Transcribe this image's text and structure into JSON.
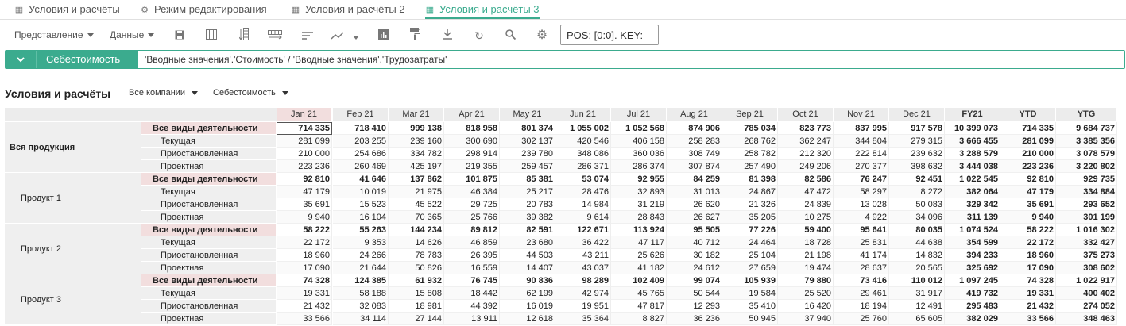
{
  "tabs": [
    {
      "label": "Условия и расчёты",
      "icon": "grid-icon"
    },
    {
      "label": "Режим редактирования",
      "icon": "gear-icon"
    },
    {
      "label": "Условия и расчёты 2",
      "icon": "grid-icon"
    },
    {
      "label": "Условия и расчёты 3",
      "icon": "grid-icon",
      "active": true
    }
  ],
  "toolbar": {
    "view_label": "Представление",
    "data_label": "Данные",
    "icons": [
      "save-icon",
      "table-icon",
      "column-icon",
      "row-icon",
      "sort-icon",
      "chart-icon",
      "chart-dropdown-icon",
      "bar-chart-icon",
      "format-paint-icon",
      "download-icon",
      "refresh-icon",
      "search-icon",
      "settings-icon"
    ],
    "pos_text": "POS: [0:0]. KEY:"
  },
  "formula": {
    "name": "Себестоимость",
    "expression": "'Вводные значения'.'Стоимость' / 'Вводные значения'.'Трудозатраты'"
  },
  "grid_header": {
    "title": "Условия и расчёты",
    "filter1": "Все компании",
    "filter2": "Себестоимость"
  },
  "columns": [
    "Jan 21",
    "Feb 21",
    "Mar 21",
    "Apr 21",
    "May 21",
    "Jun 21",
    "Jul 21",
    "Aug 21",
    "Sep 21",
    "Oct 21",
    "Nov 21",
    "Dec 21",
    "FY21",
    "YTD",
    "YTG"
  ],
  "groups": [
    {
      "name": "Вся продукция",
      "rows": [
        {
          "label": "Все виды деятельности",
          "bold": true,
          "values": [
            "714 335",
            "718 410",
            "999 138",
            "818 958",
            "801 374",
            "1 055 002",
            "1 052 568",
            "874 906",
            "785 034",
            "823 773",
            "837 995",
            "917 578",
            "10 399 073",
            "714 335",
            "9 684 737"
          ]
        },
        {
          "label": "Текущая",
          "values": [
            "281 099",
            "203 255",
            "239 160",
            "300 690",
            "302 137",
            "420 546",
            "406 158",
            "258 283",
            "268 762",
            "362 247",
            "344 804",
            "279 315",
            "3 666 455",
            "281 099",
            "3 385 356"
          ]
        },
        {
          "label": "Приостановленная",
          "values": [
            "210 000",
            "254 686",
            "334 782",
            "298 914",
            "239 780",
            "348 086",
            "360 036",
            "308 749",
            "258 782",
            "212 320",
            "222 814",
            "239 632",
            "3 288 579",
            "210 000",
            "3 078 579"
          ]
        },
        {
          "label": "Проектная",
          "values": [
            "223 236",
            "260 469",
            "425 197",
            "219 355",
            "259 457",
            "286 371",
            "286 374",
            "307 874",
            "257 490",
            "249 206",
            "270 377",
            "398 632",
            "3 444 038",
            "223 236",
            "3 220 802"
          ]
        }
      ]
    },
    {
      "name": "Продукт 1",
      "rows": [
        {
          "label": "Все виды деятельности",
          "bold": true,
          "values": [
            "92 810",
            "41 646",
            "137 862",
            "101 875",
            "85 381",
            "53 074",
            "92 955",
            "84 259",
            "81 398",
            "82 586",
            "76 247",
            "92 451",
            "1 022 545",
            "92 810",
            "929 735"
          ]
        },
        {
          "label": "Текущая",
          "values": [
            "47 179",
            "10 019",
            "21 975",
            "46 384",
            "25 217",
            "28 476",
            "32 893",
            "31 013",
            "24 867",
            "47 472",
            "58 297",
            "8 272",
            "382 064",
            "47 179",
            "334 884"
          ]
        },
        {
          "label": "Приостановленная",
          "values": [
            "35 691",
            "15 523",
            "45 522",
            "29 725",
            "20 783",
            "14 984",
            "31 219",
            "26 620",
            "21 326",
            "24 839",
            "13 028",
            "50 083",
            "329 342",
            "35 691",
            "293 652"
          ]
        },
        {
          "label": "Проектная",
          "values": [
            "9 940",
            "16 104",
            "70 365",
            "25 766",
            "39 382",
            "9 614",
            "28 843",
            "26 627",
            "35 205",
            "10 275",
            "4 922",
            "34 096",
            "311 139",
            "9 940",
            "301 199"
          ]
        }
      ]
    },
    {
      "name": "Продукт 2",
      "rows": [
        {
          "label": "Все виды деятельности",
          "bold": true,
          "values": [
            "58 222",
            "55 263",
            "144 234",
            "89 812",
            "82 591",
            "122 671",
            "113 924",
            "95 505",
            "77 226",
            "59 400",
            "95 641",
            "80 035",
            "1 074 524",
            "58 222",
            "1 016 302"
          ]
        },
        {
          "label": "Текущая",
          "values": [
            "22 172",
            "9 353",
            "14 626",
            "46 859",
            "23 680",
            "36 422",
            "47 117",
            "40 712",
            "24 464",
            "18 728",
            "25 831",
            "44 638",
            "354 599",
            "22 172",
            "332 427"
          ]
        },
        {
          "label": "Приостановленная",
          "values": [
            "18 960",
            "24 266",
            "78 783",
            "26 395",
            "44 503",
            "43 211",
            "25 626",
            "30 182",
            "25 104",
            "21 198",
            "41 174",
            "14 832",
            "394 233",
            "18 960",
            "375 273"
          ]
        },
        {
          "label": "Проектная",
          "values": [
            "17 090",
            "21 644",
            "50 826",
            "16 559",
            "14 407",
            "43 037",
            "41 182",
            "24 612",
            "27 659",
            "19 474",
            "28 637",
            "20 565",
            "325 692",
            "17 090",
            "308 602"
          ]
        }
      ]
    },
    {
      "name": "Продукт 3",
      "rows": [
        {
          "label": "Все виды деятельности",
          "bold": true,
          "values": [
            "74 328",
            "124 385",
            "61 932",
            "76 745",
            "90 836",
            "98 289",
            "102 409",
            "99 074",
            "105 939",
            "79 880",
            "73 416",
            "110 012",
            "1 097 245",
            "74 328",
            "1 022 917"
          ]
        },
        {
          "label": "Текущая",
          "values": [
            "19 331",
            "58 188",
            "15 808",
            "18 442",
            "62 199",
            "42 974",
            "45 765",
            "50 544",
            "19 584",
            "25 520",
            "29 461",
            "31 917",
            "419 732",
            "19 331",
            "400 402"
          ]
        },
        {
          "label": "Приостановленная",
          "values": [
            "21 432",
            "32 083",
            "18 981",
            "44 392",
            "16 019",
            "19 951",
            "47 817",
            "12 293",
            "35 410",
            "16 420",
            "18 194",
            "12 491",
            "295 483",
            "21 432",
            "274 052"
          ]
        },
        {
          "label": "Проектная",
          "values": [
            "33 566",
            "34 114",
            "27 144",
            "13 911",
            "12 618",
            "35 364",
            "8 827",
            "36 236",
            "50 945",
            "37 940",
            "25 760",
            "65 605",
            "382 029",
            "33 566",
            "348 463"
          ]
        }
      ]
    }
  ]
}
